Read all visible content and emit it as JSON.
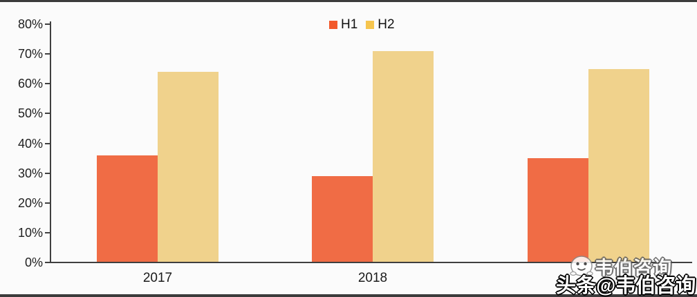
{
  "chart_data": {
    "type": "bar",
    "title": "",
    "xlabel": "",
    "ylabel": "",
    "categories": [
      "2017",
      "2018",
      ""
    ],
    "series": [
      {
        "name": "H1",
        "color": "#F06C45",
        "legend_color": "#F2592B",
        "values": [
          36,
          29,
          35
        ]
      },
      {
        "name": "H2",
        "color": "#F0D28C",
        "legend_color": "#F6C54E",
        "values": [
          64,
          71,
          65
        ]
      }
    ],
    "ylim": [
      0,
      80
    ],
    "ytick_step": 10,
    "ytick_labels": [
      "0%",
      "10%",
      "20%",
      "30%",
      "40%",
      "50%",
      "60%",
      "70%",
      "80%"
    ],
    "grid": false,
    "legend_position": "top-center"
  },
  "watermark": {
    "logo": "mascot-icon",
    "line1": "韦伯咨询",
    "line2": "头条@韦伯咨询"
  },
  "colors": {
    "background": "#FBFBFB",
    "frame_strip": "#3B3B3B",
    "axis": "#3F3F3F",
    "label_text": "#1F1F1F"
  }
}
